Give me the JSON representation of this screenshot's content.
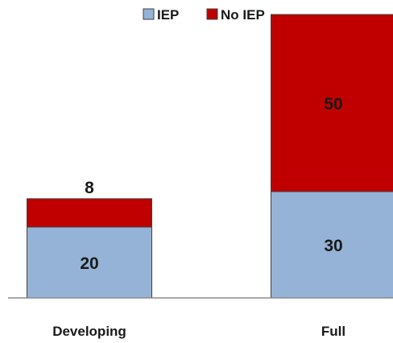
{
  "chart_data": {
    "type": "bar",
    "stacked": true,
    "categories": [
      "Developing",
      "Full"
    ],
    "series": [
      {
        "name": "IEP",
        "values": [
          20,
          30
        ],
        "color": "#95b3d7"
      },
      {
        "name": "No IEP",
        "values": [
          8,
          50
        ],
        "color": "#c00000"
      }
    ],
    "legend": {
      "placement": "top",
      "items": [
        "IEP",
        "No IEP"
      ]
    },
    "data_labels": true,
    "ylim": [
      0,
      80
    ],
    "grid": false,
    "xlabel": "",
    "ylabel": ""
  }
}
